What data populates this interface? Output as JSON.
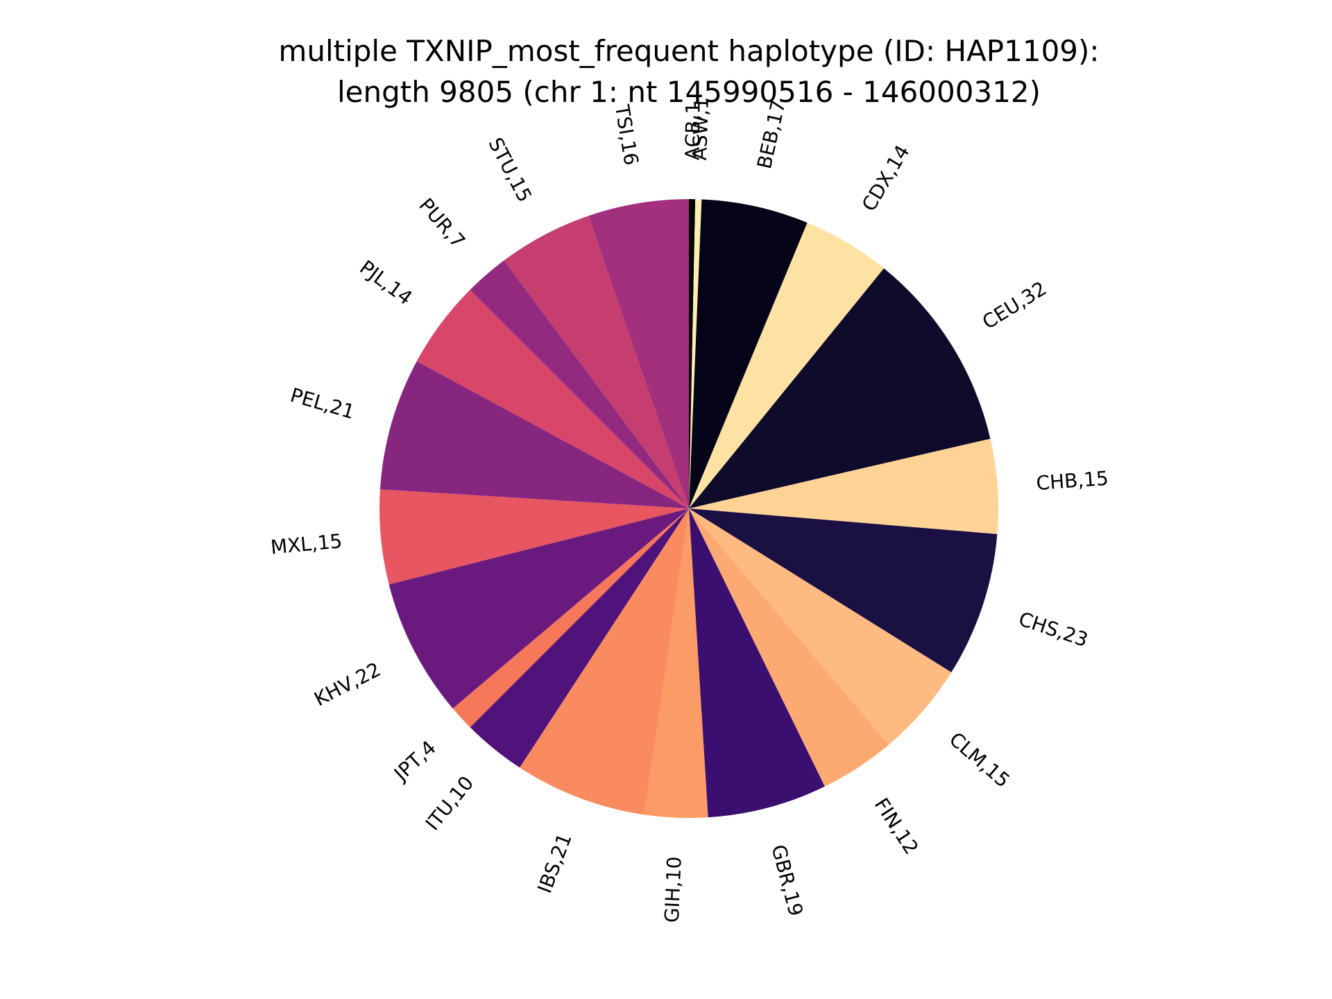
{
  "chart_data": {
    "type": "pie",
    "title_line1": "multiple TXNIP_most_frequent haplotype (ID: HAP1109):",
    "title_line2": "length 9805 (chr 1: nt 145990516 - 146000312)",
    "start_angle_deg": 90,
    "direction": "clockwise",
    "slices": [
      {
        "label": "ACB,1",
        "value": 1,
        "color": "#000004"
      },
      {
        "label": "ASW,1",
        "value": 1,
        "color": "#fcefb1"
      },
      {
        "label": "BEB,17",
        "value": 17,
        "color": "#050418"
      },
      {
        "label": "CDX,14",
        "value": 14,
        "color": "#fde2a3"
      },
      {
        "label": "CEU,32",
        "value": 32,
        "color": "#0e0b2b"
      },
      {
        "label": "CHB,15",
        "value": 15,
        "color": "#fed395"
      },
      {
        "label": "CHS,23",
        "value": 23,
        "color": "#1a1042"
      },
      {
        "label": "CLM,15",
        "value": 15,
        "color": "#febb81"
      },
      {
        "label": "FIN,12",
        "value": 12,
        "color": "#fdaa72"
      },
      {
        "label": "GBR,19",
        "value": 19,
        "color": "#3b0f70"
      },
      {
        "label": "GIH,10",
        "value": 10,
        "color": "#fb9b65"
      },
      {
        "label": "IBS,21",
        "value": 21,
        "color": "#fa8a5f"
      },
      {
        "label": "ITU,10",
        "value": 10,
        "color": "#50127b"
      },
      {
        "label": "JPT,4",
        "value": 4,
        "color": "#f6785b"
      },
      {
        "label": "KHV,22",
        "value": 22,
        "color": "#6a1a7e"
      },
      {
        "label": "MXL,15",
        "value": 15,
        "color": "#e85661"
      },
      {
        "label": "PEL,21",
        "value": 21,
        "color": "#86267f"
      },
      {
        "label": "PJL,14",
        "value": 14,
        "color": "#d8466a"
      },
      {
        "label": "PUR,7",
        "value": 7,
        "color": "#932a80"
      },
      {
        "label": "STU,15",
        "value": 15,
        "color": "#c63d6f"
      },
      {
        "label": "TSI,16",
        "value": 16,
        "color": "#a3307d"
      }
    ]
  }
}
